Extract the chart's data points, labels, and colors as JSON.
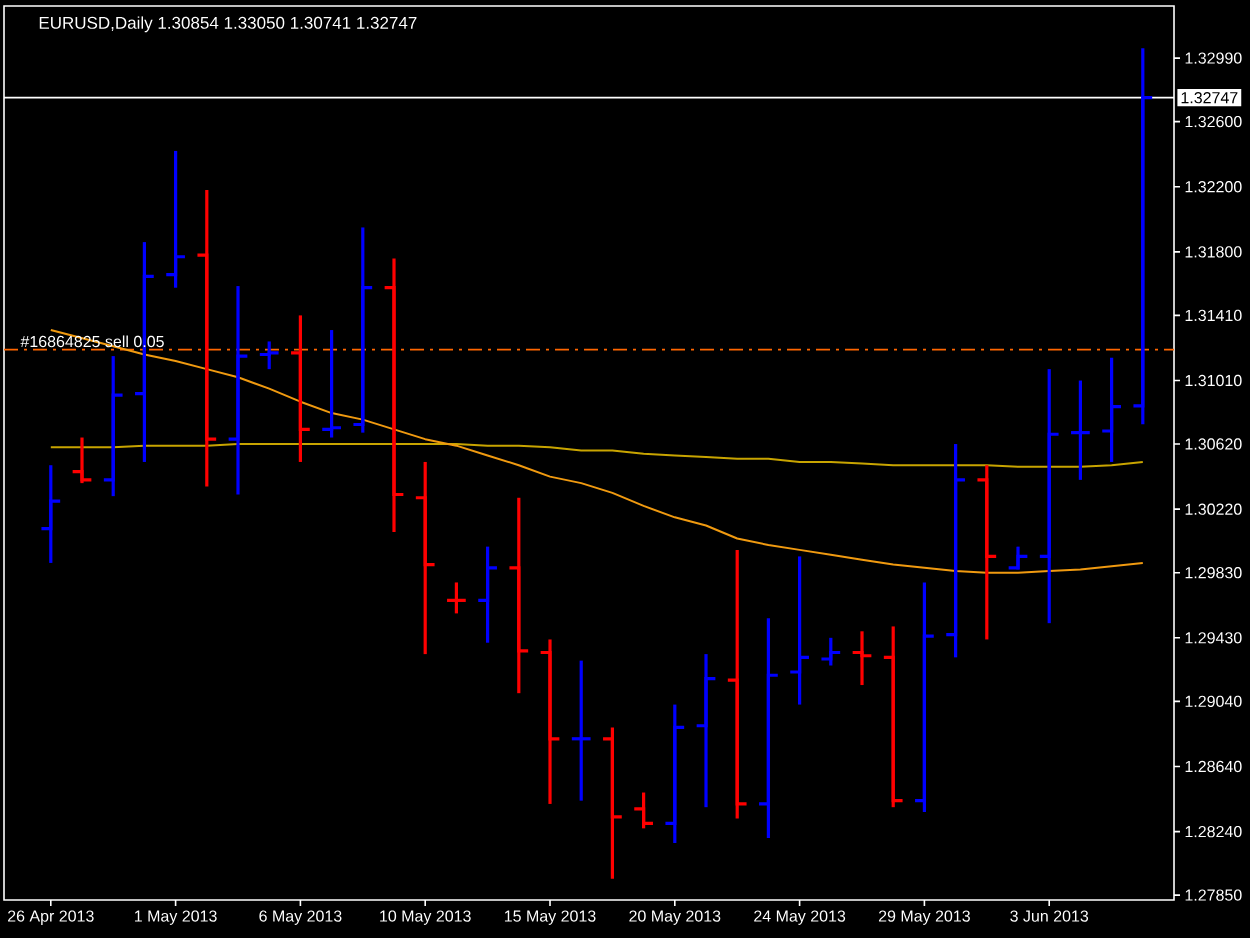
{
  "chart_data": {
    "type": "candlestick",
    "title": "EURUSD,Daily 1.30854 1.33050 1.30741 1.32747",
    "categories": [
      "26 Apr 2013",
      null,
      null,
      null,
      "1 May 2013",
      null,
      null,
      null,
      "6 May 2013",
      null,
      null,
      null,
      "10 May 2013",
      null,
      null,
      null,
      "15 May 2013",
      null,
      null,
      null,
      "20 May 2013",
      null,
      null,
      null,
      "24 May 2013",
      null,
      null,
      null,
      "29 May 2013",
      null,
      null,
      null,
      "3 Jun 2013",
      null,
      null,
      null
    ],
    "ohlc": [
      [
        1.301,
        1.3049,
        1.2989,
        1.3027
      ],
      [
        1.3045,
        1.3066,
        1.3038,
        1.304
      ],
      [
        1.304,
        1.3116,
        1.303,
        1.3092
      ],
      [
        1.3093,
        1.3186,
        1.3051,
        1.3165
      ],
      [
        1.3166,
        1.3242,
        1.3158,
        1.3177
      ],
      [
        1.3178,
        1.3218,
        1.3036,
        1.3065
      ],
      [
        1.3065,
        1.3159,
        1.3031,
        1.3116
      ],
      [
        1.3117,
        1.3125,
        1.3108,
        1.3118
      ],
      [
        1.3118,
        1.3141,
        1.3051,
        1.3071
      ],
      [
        1.3071,
        1.3132,
        1.3066,
        1.3072
      ],
      [
        1.3074,
        1.3195,
        1.3069,
        1.3158
      ],
      [
        1.3158,
        1.3176,
        1.3008,
        1.3031
      ],
      [
        1.3029,
        1.3051,
        1.2933,
        1.2988
      ],
      [
        1.2966,
        1.2977,
        1.2958,
        1.2966
      ],
      [
        1.2966,
        1.2999,
        1.294,
        1.2986
      ],
      [
        1.2986,
        1.3029,
        1.2909,
        1.2935
      ],
      [
        1.2934,
        1.2942,
        1.2841,
        1.2881
      ],
      [
        1.2881,
        1.2929,
        1.2843,
        1.2881
      ],
      [
        1.2881,
        1.2888,
        1.2795,
        1.2833
      ],
      [
        1.2838,
        1.2848,
        1.2826,
        1.2829
      ],
      [
        1.2829,
        1.2902,
        1.2817,
        1.2888
      ],
      [
        1.2889,
        1.2933,
        1.2839,
        1.2918
      ],
      [
        1.2917,
        1.2997,
        1.2832,
        1.2841
      ],
      [
        1.2841,
        1.2955,
        1.282,
        1.292
      ],
      [
        1.2922,
        1.2993,
        1.2902,
        1.2931
      ],
      [
        1.293,
        1.2943,
        1.2926,
        1.2934
      ],
      [
        1.2934,
        1.2947,
        1.2914,
        1.2932
      ],
      [
        1.2931,
        1.295,
        1.2839,
        1.2843
      ],
      [
        1.2843,
        1.2977,
        1.2836,
        1.2944
      ],
      [
        1.2945,
        1.3062,
        1.2931,
        1.304
      ],
      [
        1.304,
        1.3049,
        1.2942,
        1.2993
      ],
      [
        1.2986,
        1.2999,
        1.2985,
        1.2993
      ],
      [
        1.2993,
        1.3108,
        1.2952,
        1.3068
      ],
      [
        1.3069,
        1.3101,
        1.304,
        1.3069
      ],
      [
        1.307,
        1.3115,
        1.3051,
        1.3085
      ],
      [
        1.30854,
        1.3305,
        1.30741,
        1.32747
      ]
    ],
    "colors": [
      "#0000ff",
      "#ff0000",
      "#0000ff",
      "#0000ff",
      "#0000ff",
      "#ff0000",
      "#0000ff",
      "#0000ff",
      "#ff0000",
      "#0000ff",
      "#0000ff",
      "#ff0000",
      "#ff0000",
      "#ff0000",
      "#0000ff",
      "#ff0000",
      "#ff0000",
      "#0000ff",
      "#ff0000",
      "#ff0000",
      "#0000ff",
      "#0000ff",
      "#ff0000",
      "#0000ff",
      "#0000ff",
      "#0000ff",
      "#ff0000",
      "#ff0000",
      "#0000ff",
      "#0000ff",
      "#ff0000",
      "#0000ff",
      "#0000ff",
      "#0000ff",
      "#0000ff",
      "#0000ff"
    ],
    "series": [
      {
        "type": "line",
        "color": "#c8a400",
        "values": [
          1.306,
          1.306,
          1.306,
          1.3061,
          1.3061,
          1.3061,
          1.3062,
          1.3062,
          1.3062,
          1.3062,
          1.3062,
          1.3062,
          1.3062,
          1.3062,
          1.3061,
          1.3061,
          1.306,
          1.3058,
          1.3058,
          1.3056,
          1.3055,
          1.3054,
          1.3053,
          1.3053,
          1.3051,
          1.3051,
          1.305,
          1.3049,
          1.3049,
          1.3049,
          1.3049,
          1.3048,
          1.3048,
          1.3048,
          1.3049,
          1.3051
        ]
      },
      {
        "type": "line",
        "color": "#f09a10",
        "values": [
          1.3132,
          1.3127,
          1.3122,
          1.3117,
          1.3113,
          1.3108,
          1.3103,
          1.3096,
          1.3088,
          1.3081,
          1.3077,
          1.3071,
          1.3065,
          1.3061,
          1.3055,
          1.3049,
          1.3042,
          1.3038,
          1.3032,
          1.3024,
          1.3017,
          1.3012,
          1.3004,
          1.3,
          1.2997,
          1.2994,
          1.2991,
          1.2988,
          1.2986,
          1.2984,
          1.2983,
          1.2983,
          1.2984,
          1.2985,
          1.2987,
          1.2989
        ]
      }
    ],
    "ylim": [
      1.2782,
      1.3331
    ],
    "yticks": [
      {
        "value": 1.2785,
        "label": "1.27850"
      },
      {
        "value": 1.2824,
        "label": "1.28240"
      },
      {
        "value": 1.2864,
        "label": "1.28640"
      },
      {
        "value": 1.2904,
        "label": "1.29040"
      },
      {
        "value": 1.2943,
        "label": "1.29430"
      },
      {
        "value": 1.2983,
        "label": "1.29830"
      },
      {
        "value": 1.3022,
        "label": "1.30220"
      },
      {
        "value": 1.3062,
        "label": "1.30620"
      },
      {
        "value": 1.3101,
        "label": "1.31010"
      },
      {
        "value": 1.3141,
        "label": "1.31410"
      },
      {
        "value": 1.318,
        "label": "1.31800"
      },
      {
        "value": 1.322,
        "label": "1.32200"
      },
      {
        "value": 1.326,
        "label": "1.32600"
      },
      {
        "value": 1.3299,
        "label": "1.32990"
      }
    ],
    "ref_lines": [
      {
        "axis": "y",
        "value": 1.32747,
        "label": "1.32747",
        "color": "#ffffff",
        "line_style": "solid"
      },
      {
        "axis": "y",
        "value": 1.312,
        "label": "#16864825 sell 0.05",
        "color": "#ff6600",
        "line_style": "dashdot"
      }
    ]
  }
}
